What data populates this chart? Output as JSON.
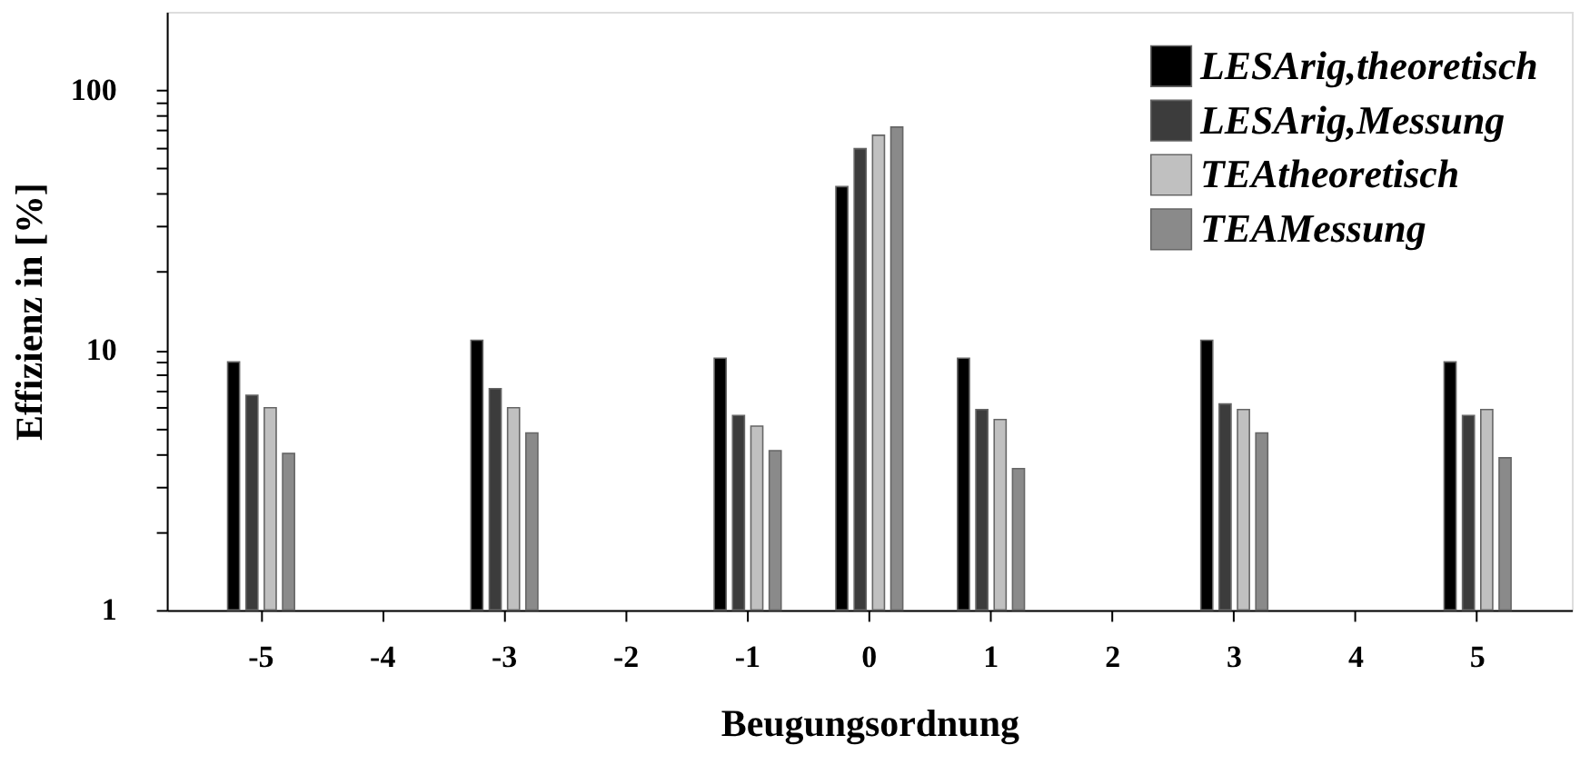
{
  "chart_data": {
    "type": "bar",
    "xlabel": "Beugungsordnung",
    "ylabel": "Effizienz in [%]",
    "categories": [
      "-5",
      "-4",
      "-3",
      "-2",
      "-1",
      "0",
      "1",
      "2",
      "3",
      "4",
      "5"
    ],
    "series": [
      {
        "name": "LESArig,theoretisch",
        "color": "#000000",
        "values": [
          9.0,
          null,
          10.9,
          null,
          9.3,
          42.5,
          9.3,
          null,
          10.9,
          null,
          9.0
        ]
      },
      {
        "name": "LESArig,Messung",
        "color": "#3c3c3c",
        "values": [
          6.7,
          null,
          7.1,
          null,
          5.6,
          59.5,
          5.9,
          null,
          6.2,
          null,
          5.6
        ]
      },
      {
        "name": "TEAtheoretisch",
        "color": "#c0c0c0",
        "values": [
          6.0,
          null,
          6.0,
          null,
          5.1,
          67,
          5.4,
          null,
          5.9,
          null,
          5.9
        ]
      },
      {
        "name": "TEAMessung",
        "color": "#8a8a8a",
        "values": [
          4.0,
          null,
          4.8,
          null,
          4.1,
          72,
          3.5,
          null,
          4.8,
          null,
          3.85
        ]
      }
    ],
    "log": true,
    "ylim": [
      1,
      200
    ],
    "yticks": [
      1,
      {
        "value": 2,
        "label": null
      },
      {
        "value": 3,
        "label": null
      },
      {
        "value": 4,
        "label": null
      },
      {
        "value": 5,
        "label": null
      },
      {
        "value": 6,
        "label": null
      },
      {
        "value": 7,
        "label": null
      },
      {
        "value": 8,
        "label": null
      },
      {
        "value": 9,
        "label": null
      },
      10,
      {
        "value": 20,
        "label": null
      },
      {
        "value": 30,
        "label": null
      },
      {
        "value": 40,
        "label": null
      },
      {
        "value": 50,
        "label": null
      },
      {
        "value": 60,
        "label": null
      },
      {
        "value": 70,
        "label": null
      },
      {
        "value": 80,
        "label": null
      },
      {
        "value": 90,
        "label": null
      },
      100
    ],
    "grid": false,
    "legend": "top right"
  }
}
